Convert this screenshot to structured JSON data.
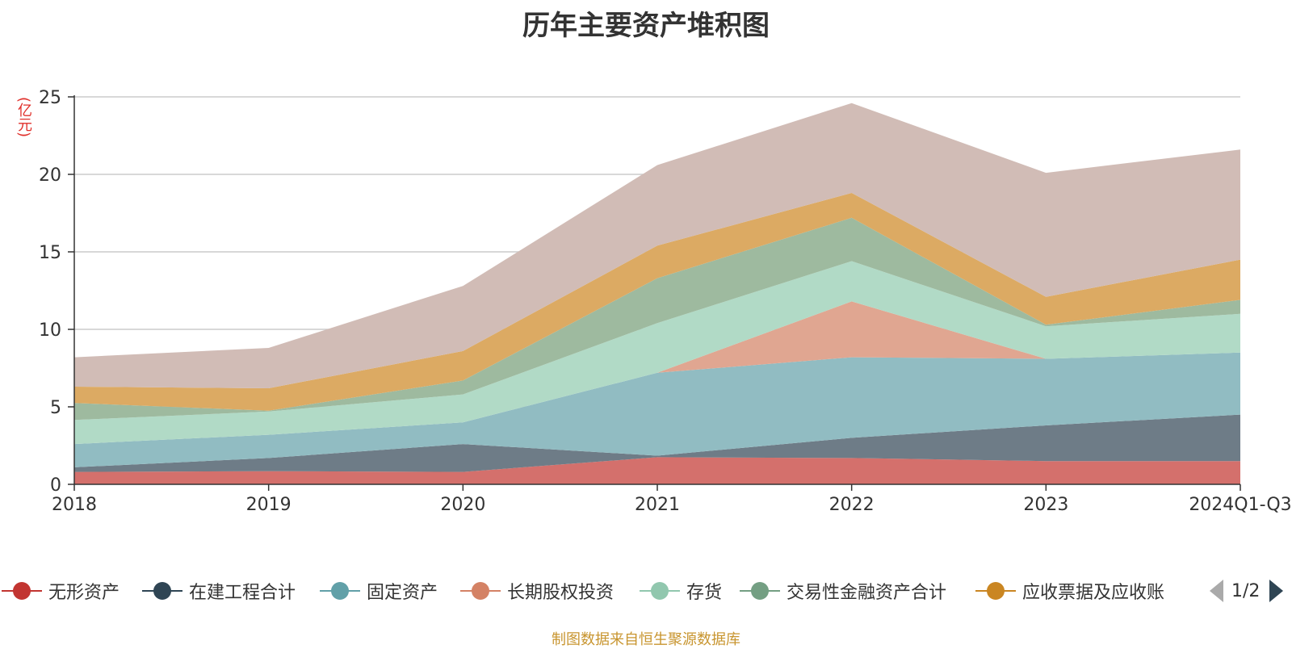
{
  "chart_data": {
    "type": "area",
    "stacked": true,
    "title": "历年主要资产堆积图",
    "ylabel": "(亿元)",
    "xlabel": "",
    "ylim": [
      0,
      25
    ],
    "yticks": [
      0,
      5,
      10,
      15,
      20,
      25
    ],
    "grid": true,
    "categories": [
      "2018",
      "2019",
      "2020",
      "2021",
      "2022",
      "2023",
      "2024Q1-Q3"
    ],
    "series": [
      {
        "name": "无形资产",
        "color": "#c23531",
        "fill": "#d4706c",
        "values": [
          0.8,
          0.85,
          0.8,
          1.75,
          1.7,
          1.5,
          1.5
        ]
      },
      {
        "name": "在建工程合计",
        "color": "#2f4554",
        "fill": "#6e7c87",
        "values": [
          0.3,
          0.85,
          1.8,
          0.1,
          1.3,
          2.3,
          3.0
        ]
      },
      {
        "name": "固定资产",
        "color": "#61a0a8",
        "fill": "#91bcc2",
        "values": [
          1.5,
          1.5,
          1.4,
          5.35,
          5.2,
          4.3,
          4.0
        ]
      },
      {
        "name": "长期股权投资",
        "color": "#d48265",
        "fill": "#e0a691",
        "values": [
          0.0,
          0.0,
          0.0,
          0.0,
          3.6,
          0.0,
          0.0
        ]
      },
      {
        "name": "存货",
        "color": "#91c7ae",
        "fill": "#b1dac6",
        "values": [
          1.55,
          1.5,
          1.8,
          3.2,
          2.6,
          2.1,
          2.5
        ]
      },
      {
        "name": "交易性金融资产合计",
        "color": "#749f83",
        "fill": "#9eba9f",
        "values": [
          1.1,
          0.05,
          0.9,
          2.9,
          2.8,
          0.1,
          0.9
        ]
      },
      {
        "name": "应收票据及应收账",
        "color": "#ca8622",
        "fill": "#dcaa63",
        "values": [
          1.05,
          1.45,
          1.9,
          2.1,
          1.6,
          1.8,
          2.6
        ]
      },
      {
        "name": "",
        "color": "#bda29a",
        "fill": "#d1bcb6",
        "values": [
          1.9,
          2.6,
          4.2,
          5.2,
          5.8,
          8.0,
          7.1
        ]
      }
    ]
  },
  "legend": {
    "items": [
      {
        "label": "无形资产",
        "color": "#c23531"
      },
      {
        "label": "在建工程合计",
        "color": "#2f4554"
      },
      {
        "label": "固定资产",
        "color": "#61a0a8"
      },
      {
        "label": "长期股权投资",
        "color": "#d48265"
      },
      {
        "label": "存货",
        "color": "#91c7ae"
      },
      {
        "label": "交易性金融资产合计",
        "color": "#749f83"
      },
      {
        "label": "应收票据及应收账",
        "color": "#ca8622"
      }
    ],
    "page_indicator": "1/2"
  },
  "source_note": "制图数据来自恒生聚源数据库"
}
